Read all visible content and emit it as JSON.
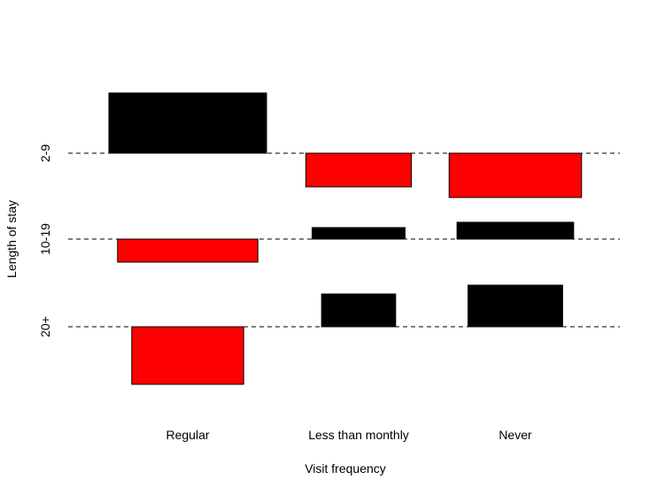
{
  "chart_data": {
    "type": "bar",
    "title": "",
    "xlabel": "Visit frequency",
    "ylabel": "Length of stay",
    "x_categories": [
      "Regular",
      "Less than monthly",
      "Never"
    ],
    "y_categories": [
      "2-9",
      "10-19",
      "20+"
    ],
    "grid": "dashed horizontal line at each y category",
    "legend": "none",
    "colors": {
      "positive": "#000000",
      "negative": "#ff0000"
    },
    "bars": [
      {
        "x": "Regular",
        "y": "2-9",
        "value": 0.68,
        "width": 1.0
      },
      {
        "x": "Regular",
        "y": "10-19",
        "value": -0.26,
        "width": 0.89
      },
      {
        "x": "Regular",
        "y": "20+",
        "value": -0.65,
        "width": 0.71
      },
      {
        "x": "Less than monthly",
        "y": "2-9",
        "value": -0.38,
        "width": 0.67
      },
      {
        "x": "Less than monthly",
        "y": "10-19",
        "value": 0.13,
        "width": 0.59
      },
      {
        "x": "Less than monthly",
        "y": "20+",
        "value": 0.37,
        "width": 0.47
      },
      {
        "x": "Never",
        "y": "2-9",
        "value": -0.5,
        "width": 0.84
      },
      {
        "x": "Never",
        "y": "10-19",
        "value": 0.19,
        "width": 0.74
      },
      {
        "x": "Never",
        "y": "20+",
        "value": 0.47,
        "width": 0.6
      }
    ]
  }
}
